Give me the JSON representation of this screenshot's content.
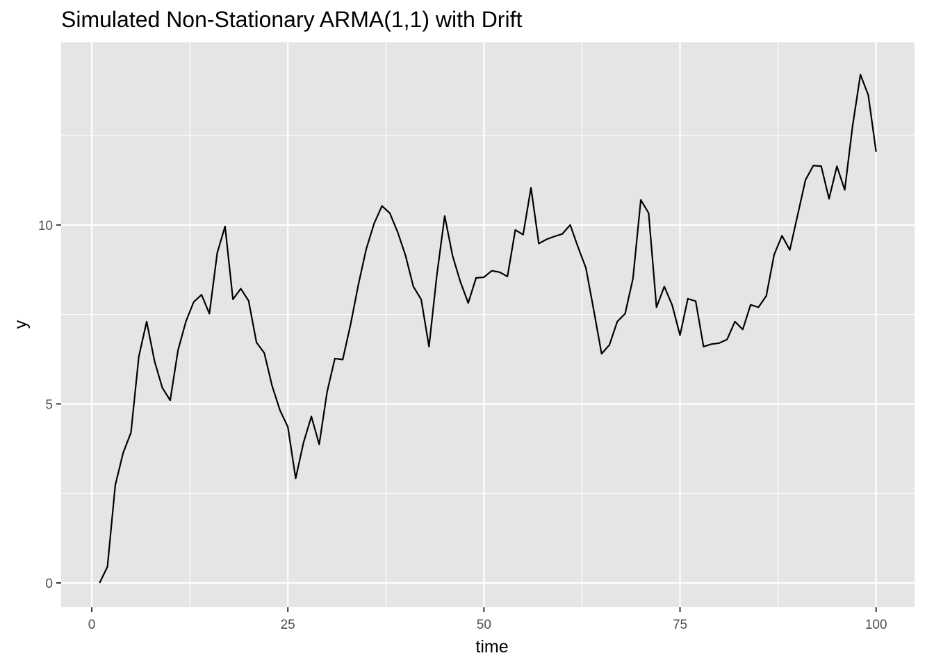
{
  "chart_data": {
    "type": "line",
    "title": "Simulated Non-Stationary ARMA(1,1) with Drift",
    "xlabel": "time",
    "ylabel": "y",
    "xlim": [
      -3.9,
      104.9
    ],
    "ylim": [
      -0.68,
      15.1
    ],
    "x_ticks": [
      0,
      25,
      50,
      75,
      100
    ],
    "x_tick_labels": [
      "0",
      "25",
      "50",
      "75",
      "100"
    ],
    "y_ticks": [
      0,
      5,
      10
    ],
    "y_tick_labels": [
      "0",
      "5",
      "10"
    ],
    "grid": true,
    "legend": "none",
    "colors": {
      "panel": "#e5e5e5",
      "grid": "#ffffff",
      "line": "#000000",
      "tick_text": "#4d4d4d",
      "tick_mark": "#333333"
    },
    "series": [
      {
        "x": [
          1,
          2,
          3,
          4,
          5,
          6,
          7,
          8,
          9,
          10,
          11,
          12,
          13,
          14,
          15,
          16,
          17,
          18,
          19,
          20,
          21,
          22,
          23,
          24,
          25,
          26,
          27,
          28,
          29,
          30,
          31,
          32,
          33,
          34,
          35,
          36,
          37,
          38,
          39,
          40,
          41,
          42,
          43,
          44,
          45,
          46,
          47,
          48,
          49,
          50,
          51,
          52,
          53,
          54,
          55,
          56,
          57,
          58,
          59,
          60,
          61,
          62,
          63,
          64,
          65,
          66,
          67,
          68,
          69,
          70,
          71,
          72,
          73,
          74,
          75,
          76,
          77,
          78,
          79,
          80,
          81,
          82,
          83,
          84,
          85,
          86,
          87,
          88,
          89,
          90,
          91,
          92,
          93,
          94,
          95,
          96,
          97,
          98,
          99,
          100
        ],
        "values": [
          0.0,
          0.45,
          2.73,
          3.63,
          4.2,
          6.32,
          7.3,
          6.2,
          5.45,
          5.1,
          6.5,
          7.3,
          7.85,
          8.05,
          7.52,
          9.22,
          9.96,
          7.92,
          8.22,
          7.88,
          6.72,
          6.42,
          5.5,
          4.82,
          4.36,
          2.92,
          3.92,
          4.65,
          3.87,
          5.33,
          6.27,
          6.24,
          7.22,
          8.34,
          9.33,
          10.04,
          10.53,
          10.33,
          9.8,
          9.15,
          8.28,
          7.92,
          6.6,
          8.6,
          10.25,
          9.14,
          8.41,
          7.82,
          8.52,
          8.54,
          8.72,
          8.68,
          8.56,
          9.86,
          9.73,
          11.04,
          9.48,
          9.6,
          9.68,
          9.75,
          10.0,
          9.38,
          8.8,
          7.62,
          6.4,
          6.65,
          7.3,
          7.52,
          8.5,
          10.7,
          10.33,
          7.7,
          8.28,
          7.76,
          6.92,
          7.94,
          7.87,
          6.6,
          6.67,
          6.7,
          6.8,
          7.3,
          7.08,
          7.77,
          7.7,
          8.02,
          9.17,
          9.7,
          9.3,
          10.28,
          11.26,
          11.66,
          11.64,
          10.73,
          11.64,
          10.98,
          12.76,
          14.2,
          13.63,
          12.04
        ]
      }
    ]
  }
}
